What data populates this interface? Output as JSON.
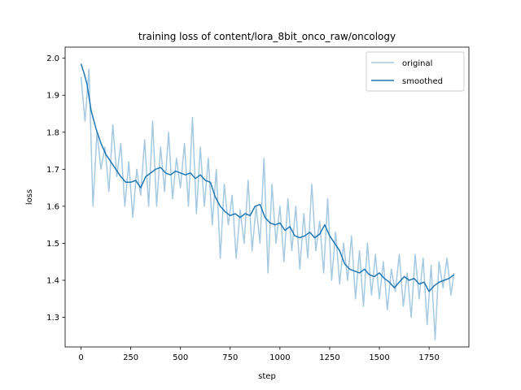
{
  "chart_data": {
    "type": "line",
    "title": "training loss of content/lora_8bit_onco_raw/oncology",
    "xlabel": "step",
    "ylabel": "loss",
    "xlim": [
      -80,
      1950
    ],
    "ylim": [
      1.22,
      2.03
    ],
    "xticks": [
      0,
      250,
      500,
      750,
      1000,
      1250,
      1500,
      1750
    ],
    "yticks": [
      1.3,
      1.4,
      1.5,
      1.6,
      1.7,
      1.8,
      1.9,
      2.0
    ],
    "xtick_labels": [
      "0",
      "250",
      "500",
      "750",
      "1000",
      "1250",
      "1500",
      "1750"
    ],
    "ytick_labels": [
      "1.3",
      "1.4",
      "1.5",
      "1.6",
      "1.7",
      "1.8",
      "1.9",
      "2.0"
    ],
    "grid": false,
    "legend_position": "top-right",
    "series": [
      {
        "name": "original",
        "color": "#1f77b4",
        "opacity": 0.4,
        "x": [
          0,
          20,
          40,
          60,
          80,
          100,
          120,
          140,
          160,
          180,
          200,
          220,
          240,
          260,
          280,
          300,
          320,
          340,
          360,
          380,
          400,
          420,
          440,
          460,
          480,
          500,
          520,
          540,
          560,
          580,
          600,
          620,
          640,
          660,
          680,
          700,
          720,
          740,
          760,
          780,
          800,
          820,
          840,
          860,
          880,
          900,
          920,
          940,
          960,
          980,
          1000,
          1020,
          1040,
          1060,
          1080,
          1100,
          1120,
          1140,
          1160,
          1180,
          1200,
          1220,
          1240,
          1260,
          1280,
          1300,
          1320,
          1340,
          1360,
          1380,
          1400,
          1420,
          1440,
          1460,
          1480,
          1500,
          1520,
          1540,
          1560,
          1580,
          1600,
          1620,
          1640,
          1660,
          1680,
          1700,
          1720,
          1740,
          1760,
          1780,
          1800,
          1820,
          1840,
          1860,
          1875
        ],
        "y": [
          1.95,
          1.83,
          1.97,
          1.6,
          1.8,
          1.7,
          1.76,
          1.64,
          1.82,
          1.68,
          1.77,
          1.6,
          1.72,
          1.57,
          1.7,
          1.63,
          1.78,
          1.6,
          1.83,
          1.6,
          1.76,
          1.64,
          1.8,
          1.62,
          1.73,
          1.65,
          1.77,
          1.6,
          1.84,
          1.58,
          1.76,
          1.6,
          1.73,
          1.55,
          1.7,
          1.46,
          1.66,
          1.55,
          1.63,
          1.46,
          1.59,
          1.5,
          1.67,
          1.48,
          1.6,
          1.5,
          1.73,
          1.42,
          1.66,
          1.5,
          1.6,
          1.45,
          1.62,
          1.48,
          1.6,
          1.43,
          1.58,
          1.46,
          1.66,
          1.48,
          1.56,
          1.42,
          1.62,
          1.4,
          1.53,
          1.39,
          1.5,
          1.4,
          1.52,
          1.35,
          1.48,
          1.33,
          1.5,
          1.36,
          1.47,
          1.35,
          1.45,
          1.32,
          1.43,
          1.37,
          1.47,
          1.33,
          1.42,
          1.3,
          1.47,
          1.35,
          1.46,
          1.28,
          1.44,
          1.24,
          1.45,
          1.38,
          1.46,
          1.36,
          1.42
        ]
      },
      {
        "name": "smoothed",
        "color": "#1f77b4",
        "opacity": 1,
        "x": [
          0,
          15,
          30,
          50,
          75,
          100,
          125,
          150,
          175,
          200,
          225,
          250,
          275,
          300,
          325,
          350,
          375,
          400,
          425,
          450,
          475,
          500,
          525,
          550,
          575,
          600,
          625,
          650,
          675,
          700,
          725,
          750,
          775,
          800,
          825,
          850,
          875,
          900,
          925,
          950,
          975,
          1000,
          1025,
          1050,
          1075,
          1100,
          1125,
          1150,
          1175,
          1200,
          1225,
          1250,
          1275,
          1300,
          1325,
          1350,
          1375,
          1400,
          1425,
          1450,
          1475,
          1500,
          1525,
          1550,
          1575,
          1600,
          1625,
          1650,
          1675,
          1700,
          1725,
          1750,
          1775,
          1800,
          1825,
          1850,
          1875
        ],
        "y": [
          1.985,
          1.96,
          1.93,
          1.86,
          1.81,
          1.77,
          1.74,
          1.72,
          1.7,
          1.68,
          1.665,
          1.665,
          1.67,
          1.65,
          1.68,
          1.69,
          1.7,
          1.705,
          1.69,
          1.685,
          1.695,
          1.69,
          1.685,
          1.69,
          1.675,
          1.685,
          1.67,
          1.665,
          1.625,
          1.6,
          1.585,
          1.575,
          1.58,
          1.57,
          1.58,
          1.575,
          1.6,
          1.605,
          1.57,
          1.555,
          1.55,
          1.555,
          1.535,
          1.545,
          1.52,
          1.515,
          1.52,
          1.53,
          1.515,
          1.525,
          1.55,
          1.52,
          1.5,
          1.48,
          1.445,
          1.43,
          1.425,
          1.42,
          1.43,
          1.415,
          1.41,
          1.42,
          1.405,
          1.395,
          1.38,
          1.395,
          1.41,
          1.4,
          1.405,
          1.39,
          1.395,
          1.37,
          1.385,
          1.395,
          1.4,
          1.405,
          1.415
        ]
      }
    ]
  }
}
